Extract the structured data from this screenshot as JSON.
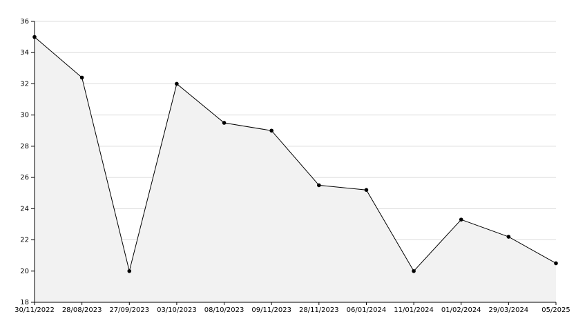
{
  "chart_data": {
    "type": "area",
    "categories": [
      "30/11/2022",
      "28/08/2023",
      "27/09/2023",
      "03/10/2023",
      "08/10/2023",
      "09/11/2023",
      "28/11/2023",
      "06/01/2024",
      "11/01/2024",
      "01/02/2024",
      "29/03/2024",
      "05/2025"
    ],
    "values": [
      35,
      32.4,
      20,
      32,
      29.5,
      29,
      25.5,
      25.2,
      20,
      23.3,
      22.2,
      20.5
    ],
    "color": "#000000",
    "fill": "#f2f2f2",
    "ylim": [
      18,
      36
    ],
    "yticks": [
      18,
      20,
      22,
      24,
      26,
      28,
      30,
      32,
      34,
      36
    ],
    "grid": true
  }
}
